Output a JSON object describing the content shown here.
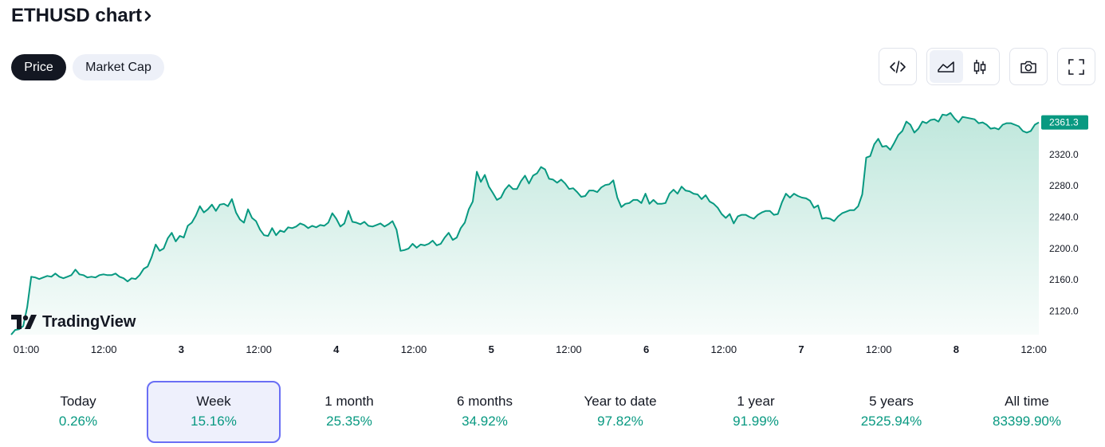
{
  "header": {
    "title": "ETHUSD chart",
    "chevron_icon": "chevron-right-icon"
  },
  "toggle": {
    "price_label": "Price",
    "market_cap_label": "Market Cap",
    "selected": "Price"
  },
  "toolbar": {
    "icons": [
      "embed-code-icon",
      "area-chart-icon",
      "candlestick-icon",
      "camera-icon",
      "fullscreen-icon"
    ],
    "selected_style": "area-chart-icon"
  },
  "branding": {
    "logo_text": "TradingView"
  },
  "colors": {
    "accent_green": "#089981",
    "area_fill_top": "#bfe7dc",
    "selected_tab_border": "#6a6ff5",
    "dark": "#131722"
  },
  "chart_data": {
    "type": "area",
    "last_price_label": "2361.3",
    "y_ticks": [
      "2320.0",
      "2280.0",
      "2240.0",
      "2200.0",
      "2160.0",
      "2120.0"
    ],
    "x_ticks": [
      "01:00",
      "12:00",
      "3",
      "12:00",
      "4",
      "12:00",
      "5",
      "12:00",
      "6",
      "12:00",
      "7",
      "12:00",
      "8",
      "12:00"
    ],
    "ylim": [
      2090,
      2385
    ],
    "grid": false,
    "series": [
      {
        "values": [
          2090,
          2096,
          2097,
          2101,
          2125,
          2164,
          2163,
          2161,
          2163,
          2165,
          2164,
          2168,
          2164,
          2162,
          2164,
          2166,
          2173,
          2167,
          2166,
          2163,
          2164,
          2163,
          2166,
          2167,
          2166,
          2166,
          2168,
          2164,
          2162,
          2158,
          2162,
          2161,
          2166,
          2174,
          2177,
          2189,
          2205,
          2197,
          2200,
          2213,
          2220,
          2209,
          2216,
          2214,
          2229,
          2233,
          2242,
          2254,
          2246,
          2250,
          2256,
          2248,
          2256,
          2257,
          2254,
          2263,
          2246,
          2237,
          2233,
          2250,
          2239,
          2235,
          2224,
          2217,
          2216,
          2226,
          2217,
          2223,
          2221,
          2227,
          2226,
          2228,
          2232,
          2230,
          2226,
          2229,
          2227,
          2230,
          2229,
          2233,
          2245,
          2238,
          2228,
          2232,
          2248,
          2234,
          2233,
          2231,
          2234,
          2229,
          2228,
          2230,
          2232,
          2228,
          2231,
          2235,
          2224,
          2197,
          2198,
          2200,
          2206,
          2201,
          2205,
          2204,
          2206,
          2210,
          2204,
          2206,
          2214,
          2220,
          2211,
          2214,
          2226,
          2233,
          2250,
          2260,
          2298,
          2285,
          2294,
          2279,
          2271,
          2262,
          2265,
          2275,
          2281,
          2276,
          2276,
          2286,
          2293,
          2283,
          2293,
          2296,
          2304,
          2301,
          2289,
          2288,
          2284,
          2288,
          2283,
          2276,
          2277,
          2272,
          2266,
          2267,
          2274,
          2274,
          2272,
          2278,
          2281,
          2282,
          2287,
          2265,
          2253,
          2257,
          2258,
          2262,
          2262,
          2258,
          2270,
          2257,
          2262,
          2257,
          2257,
          2258,
          2270,
          2275,
          2270,
          2279,
          2274,
          2273,
          2270,
          2269,
          2263,
          2268,
          2260,
          2257,
          2252,
          2244,
          2239,
          2244,
          2232,
          2241,
          2243,
          2243,
          2240,
          2238,
          2243,
          2246,
          2248,
          2248,
          2243,
          2244,
          2259,
          2270,
          2265,
          2270,
          2267,
          2265,
          2264,
          2261,
          2252,
          2255,
          2238,
          2239,
          2238,
          2235,
          2241,
          2245,
          2247,
          2249,
          2249,
          2254,
          2269,
          2316,
          2318,
          2333,
          2340,
          2330,
          2331,
          2326,
          2335,
          2345,
          2350,
          2362,
          2358,
          2348,
          2353,
          2362,
          2360,
          2364,
          2365,
          2362,
          2371,
          2370,
          2373,
          2366,
          2361,
          2368,
          2367,
          2366,
          2365,
          2360,
          2361,
          2358,
          2353,
          2354,
          2352,
          2358,
          2360,
          2360,
          2358,
          2356,
          2350,
          2348,
          2350,
          2358,
          2361
        ]
      }
    ]
  },
  "ranges": [
    {
      "label": "Today",
      "value": "0.26%"
    },
    {
      "label": "Week",
      "value": "15.16%"
    },
    {
      "label": "1 month",
      "value": "25.35%"
    },
    {
      "label": "6 months",
      "value": "34.92%"
    },
    {
      "label": "Year to date",
      "value": "97.82%"
    },
    {
      "label": "1 year",
      "value": "91.99%"
    },
    {
      "label": "5 years",
      "value": "2525.94%"
    },
    {
      "label": "All time",
      "value": "83399.90%"
    }
  ],
  "selected_range": "Week"
}
